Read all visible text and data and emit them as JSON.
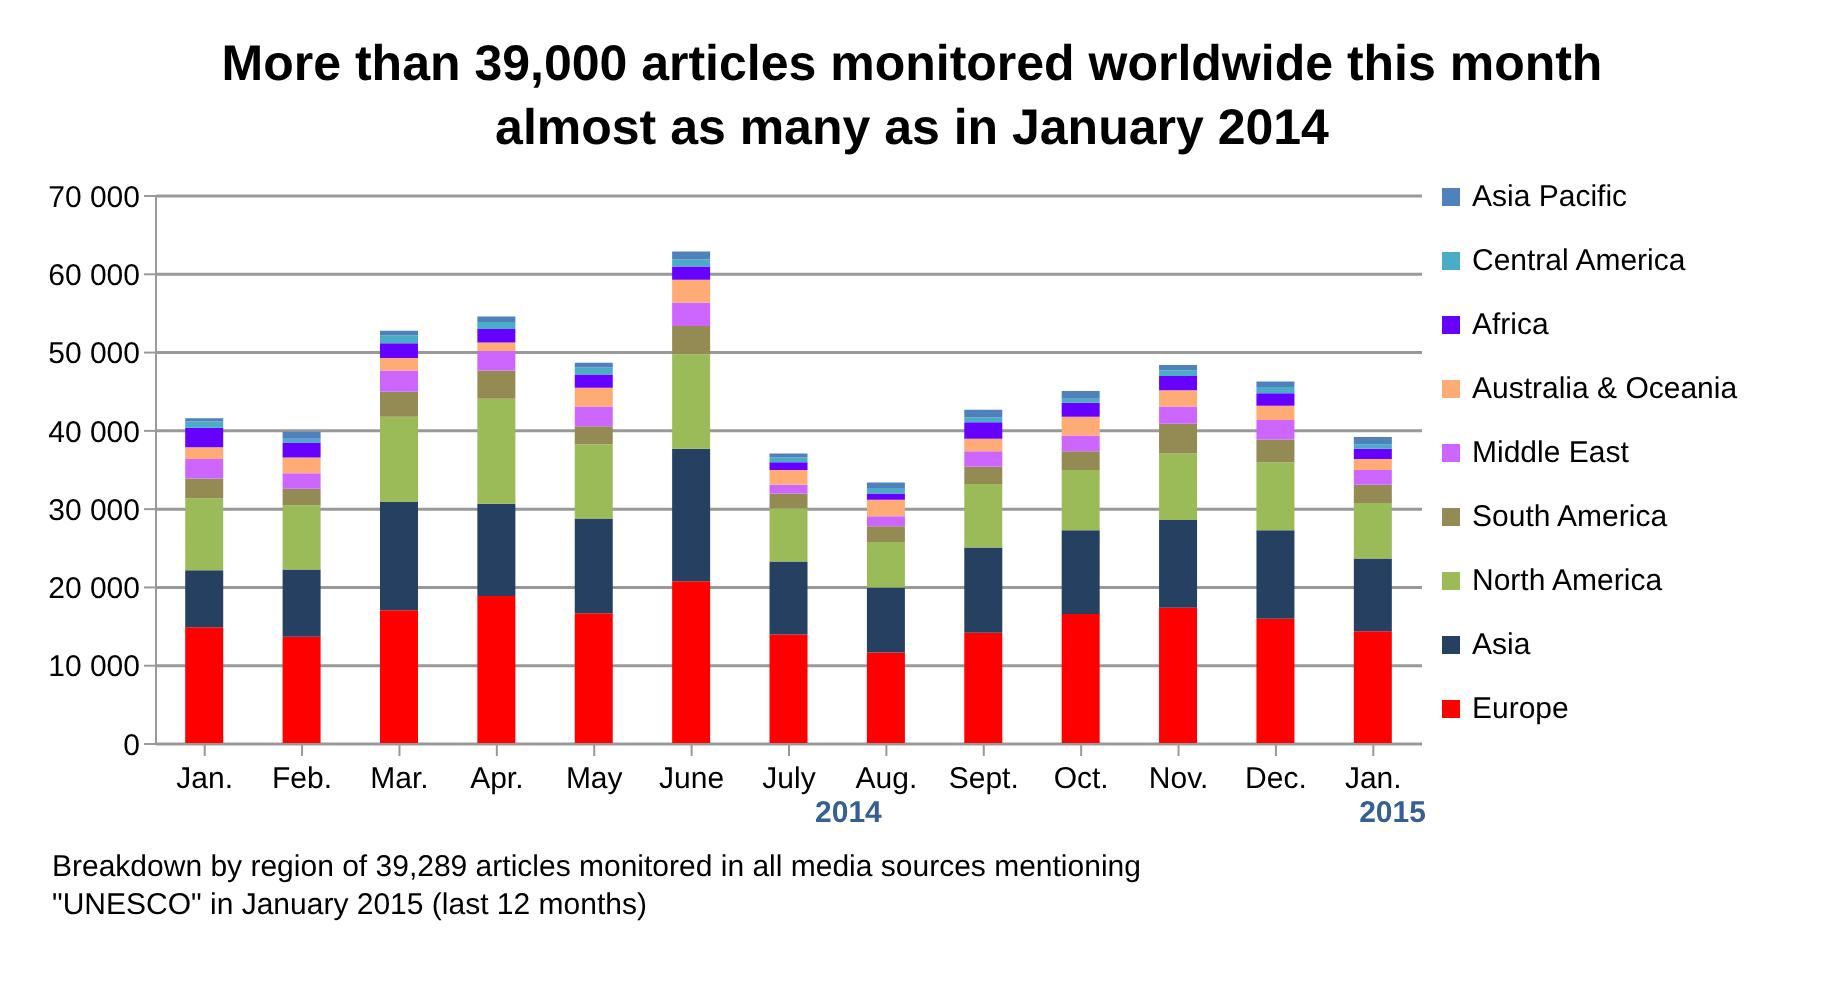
{
  "chart_data": {
    "type": "bar",
    "stacked": true,
    "title": "More than 39,000 articles monitored worldwide this month almost as many as in January 2014",
    "categories": [
      "Jan.",
      "Feb.",
      "Mar.",
      "Apr.",
      "May",
      "June",
      "July",
      "Aug.",
      "Sept.",
      "Oct.",
      "Nov.",
      "Dec.",
      "Jan."
    ],
    "series": [
      {
        "name": "Europe",
        "color": "#ff0000",
        "values": [
          14900,
          13700,
          17100,
          18900,
          16700,
          20800,
          14000,
          11700,
          14200,
          16600,
          17400,
          16000,
          14400
        ]
      },
      {
        "name": "Asia",
        "color": "#254061",
        "values": [
          7300,
          8600,
          13800,
          11800,
          12100,
          16900,
          9300,
          8300,
          10900,
          10700,
          11200,
          11300,
          9300
        ]
      },
      {
        "name": "North America",
        "color": "#9bbb59",
        "values": [
          9200,
          8200,
          10900,
          13400,
          9500,
          12100,
          6800,
          5800,
          8100,
          7700,
          8500,
          8700,
          7100
        ]
      },
      {
        "name": "South America",
        "color": "#948a54",
        "values": [
          2500,
          2100,
          3200,
          3600,
          2300,
          3600,
          1900,
          2000,
          2200,
          2400,
          3800,
          2900,
          2300
        ]
      },
      {
        "name": "Middle East",
        "color": "#cc66ff",
        "values": [
          2500,
          2000,
          2700,
          2500,
          2500,
          3000,
          1100,
          1300,
          2000,
          2000,
          2200,
          2500,
          1900
        ]
      },
      {
        "name": "Australia & Oceania",
        "color": "#ffab75",
        "values": [
          1500,
          2000,
          1600,
          1100,
          2400,
          2900,
          1900,
          2100,
          1600,
          2400,
          2100,
          1800,
          1400
        ]
      },
      {
        "name": "Africa",
        "color": "#6600ff",
        "values": [
          2500,
          1900,
          1900,
          1700,
          1700,
          1700,
          1000,
          800,
          2100,
          1800,
          1800,
          1600,
          1300
        ]
      },
      {
        "name": "Central America",
        "color": "#4bacc6",
        "values": [
          800,
          500,
          1000,
          900,
          900,
          900,
          600,
          700,
          600,
          500,
          700,
          800,
          600
        ]
      },
      {
        "name": "Asia Pacific",
        "color": "#4f81bd",
        "values": [
          400,
          900,
          600,
          700,
          600,
          1000,
          500,
          700,
          1000,
          1000,
          700,
          700,
          900
        ]
      }
    ],
    "ylim": [
      0,
      70000
    ],
    "yticks": [
      0,
      {
        "value": 10000,
        "label": "10 000"
      },
      {
        "value": 20000,
        "label": "20 000"
      },
      {
        "value": 30000,
        "label": "30 000"
      },
      {
        "value": 40000,
        "label": "40 000"
      },
      {
        "value": 50000,
        "label": "50 000"
      },
      {
        "value": 60000,
        "label": "60 000"
      },
      {
        "value": 70000,
        "label": "70 000"
      }
    ],
    "grid": "y",
    "legend": "right",
    "annotations": [
      "2014",
      "2015",
      "Breakdown by region of 39,289 articles monitored in all  media sources mentioning  \"UNESCO\" in January 2015  (last 12 months)"
    ]
  }
}
